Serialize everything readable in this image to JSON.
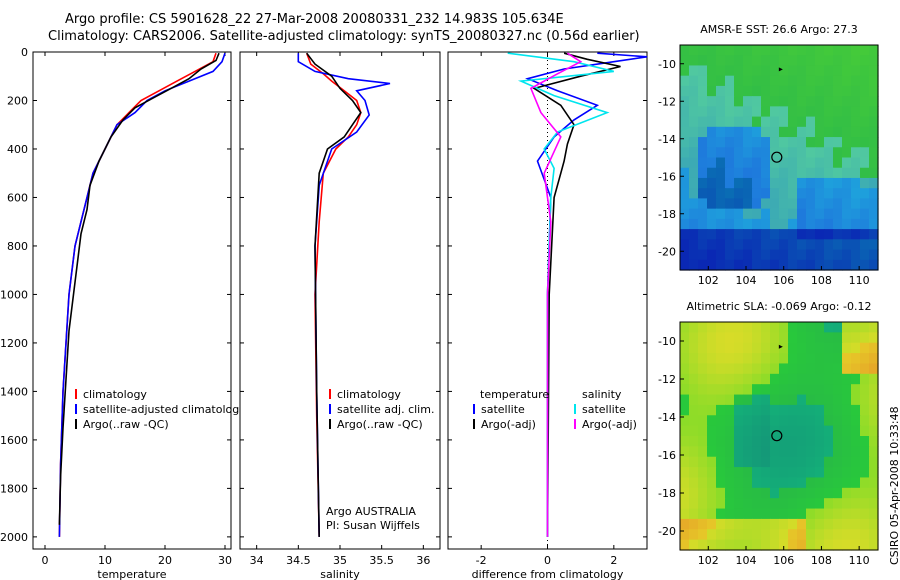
{
  "title": {
    "line1": "Argo profile: CS 5901628_22 27-Mar-2008 20080331_232 14.983S 105.634E",
    "line2": "Climatology: CARS2006. Satellite-adjusted climatology: synTS_20080327.nc (0.56d earlier)"
  },
  "side_label": "CSIRO 05-Apr-2008 10:33:48",
  "colors": {
    "climatology": "#ff0000",
    "satellite": "#0000ff",
    "argo": "#000000",
    "satellite_salinity": "#00e5ee",
    "argo_salinity": "#ff00ff"
  },
  "chart_data": [
    {
      "type": "line",
      "name": "temperature-profile",
      "xlabel": "temperature",
      "ylabel": "",
      "xlim": [
        -2,
        31
      ],
      "ylim": [
        0,
        2050
      ],
      "y_inverted": true,
      "xticks": [
        0,
        10,
        20,
        30
      ],
      "yticks": [
        0,
        200,
        400,
        600,
        800,
        1000,
        1200,
        1400,
        1600,
        1800,
        2000
      ],
      "legend": [
        "climatology",
        "satellite-adjusted climatology",
        "Argo(..raw -QC)"
      ],
      "legend_placement": "lower-right",
      "series": [
        {
          "name": "climatology",
          "color": "climatology",
          "x": [
            28.5,
            28,
            25,
            22,
            19,
            16,
            14,
            12,
            10,
            8,
            7,
            6,
            5,
            4,
            3.5,
            3,
            2.6,
            2.4
          ],
          "y": [
            5,
            40,
            80,
            120,
            160,
            200,
            250,
            300,
            400,
            500,
            600,
            700,
            800,
            1000,
            1200,
            1400,
            1700,
            2000
          ]
        },
        {
          "name": "satellite-adjusted climatology",
          "color": "satellite",
          "x": [
            30,
            29.5,
            28,
            24,
            20,
            17,
            15,
            12,
            10,
            8,
            7,
            6,
            5,
            4,
            3.5,
            3,
            2.6,
            2.4
          ],
          "y": [
            5,
            40,
            80,
            120,
            160,
            200,
            250,
            300,
            400,
            500,
            600,
            700,
            800,
            1000,
            1200,
            1400,
            1700,
            2000
          ]
        },
        {
          "name": "Argo(..raw -QC)",
          "color": "argo",
          "x": [
            29,
            28.5,
            26,
            24,
            21,
            18,
            15,
            13,
            11,
            9,
            7.5,
            7,
            6,
            5,
            4,
            3.5,
            3,
            2.6,
            2.4
          ],
          "y": [
            5,
            35,
            70,
            110,
            150,
            190,
            230,
            280,
            350,
            450,
            550,
            650,
            750,
            950,
            1150,
            1350,
            1550,
            1750,
            1950
          ]
        }
      ]
    },
    {
      "type": "line",
      "name": "salinity-profile",
      "xlabel": "salinity",
      "ylabel": "",
      "xlim": [
        33.8,
        36.2
      ],
      "ylim": [
        0,
        2050
      ],
      "y_inverted": true,
      "xticks": [
        34,
        34.5,
        35,
        35.5,
        36
      ],
      "legend": [
        "climatology",
        "satellite adj. clim.",
        "Argo(..raw -QC)"
      ],
      "legend_placement": "lower-right",
      "annotations": [
        "Argo AUSTRALIA",
        "PI: Susan Wijffels"
      ],
      "series": [
        {
          "name": "climatology",
          "color": "climatology",
          "x": [
            34.6,
            34.65,
            34.8,
            34.9,
            35.05,
            35.2,
            35.25,
            35.2,
            35.1,
            34.95,
            34.8,
            34.75,
            34.7,
            34.72,
            34.75
          ],
          "y": [
            5,
            50,
            90,
            120,
            160,
            200,
            250,
            300,
            350,
            400,
            500,
            700,
            1000,
            1500,
            2000
          ]
        },
        {
          "name": "satellite adj. clim.",
          "color": "satellite",
          "x": [
            34.5,
            34.5,
            34.7,
            35.1,
            35.6,
            35.2,
            35.3,
            35.35,
            35.2,
            34.9,
            34.75,
            34.7,
            34.72,
            34.75
          ],
          "y": [
            5,
            40,
            80,
            110,
            130,
            160,
            200,
            260,
            330,
            400,
            550,
            800,
            1400,
            2000
          ]
        },
        {
          "name": "Argo(..raw -QC)",
          "color": "argo",
          "x": [
            34.6,
            34.7,
            34.9,
            35.0,
            35.15,
            35.25,
            35.15,
            35.05,
            34.85,
            34.75,
            34.7,
            34.72,
            34.75
          ],
          "y": [
            5,
            50,
            100,
            150,
            200,
            250,
            300,
            350,
            400,
            500,
            800,
            1400,
            2000
          ]
        }
      ]
    },
    {
      "type": "line",
      "name": "difference-profile",
      "xlabel": "difference from climatology",
      "ylabel": "",
      "xlim": [
        -3,
        3
      ],
      "ylim": [
        0,
        2050
      ],
      "y_inverted": true,
      "xticks": [
        -2,
        0,
        2
      ],
      "legend": [
        "temperature",
        "satellite",
        "Argo(-adj)",
        "salinity",
        "satellite",
        "Argo(-adj)"
      ],
      "legend_placement": "lower-center",
      "series": [
        {
          "name": "temperature satellite",
          "color": "satellite",
          "x": [
            1.5,
            3,
            2,
            0.5,
            -0.6,
            0.3,
            1.5,
            0.8,
            0.2,
            -0.3,
            0.1,
            0,
            0
          ],
          "y": [
            5,
            20,
            40,
            70,
            110,
            160,
            220,
            280,
            350,
            450,
            600,
            1000,
            2000
          ]
        },
        {
          "name": "temperature Argo(-adj)",
          "color": "argo",
          "x": [
            0.5,
            1.2,
            2.2,
            1.0,
            -0.4,
            0.4,
            0.8,
            0.6,
            0.5,
            0.4,
            0.2,
            0.05,
            0
          ],
          "y": [
            5,
            30,
            60,
            100,
            150,
            220,
            300,
            380,
            450,
            500,
            600,
            1000,
            2000
          ]
        },
        {
          "name": "salinity satellite",
          "color": "satellite_salinity",
          "x": [
            -1.2,
            0.8,
            2.0,
            -0.8,
            0.2,
            1.8,
            0.3,
            -0.1,
            0.2,
            0.1,
            0,
            0
          ],
          "y": [
            5,
            40,
            80,
            120,
            180,
            250,
            330,
            400,
            480,
            600,
            1000,
            2000
          ]
        },
        {
          "name": "salinity Argo(-adj)",
          "color": "argo_salinity",
          "x": [
            0.6,
            1.0,
            0.3,
            -0.5,
            -0.2,
            0.4,
            -0.1,
            0.1,
            0.0,
            0
          ],
          "y": [
            5,
            40,
            90,
            150,
            250,
            350,
            500,
            700,
            1000,
            2000
          ]
        }
      ]
    },
    {
      "type": "heatmap",
      "name": "sst-map",
      "title": "AMSR-E SST: 26.6 Argo: 27.3",
      "xlim": [
        100.5,
        111
      ],
      "ylim": [
        -21,
        -9
      ],
      "xticks": [
        102,
        104,
        106,
        108,
        110
      ],
      "yticks": [
        -10,
        -12,
        -14,
        -16,
        -18,
        -20
      ],
      "markers": [
        {
          "kind": "circle",
          "lon": 105.634,
          "lat": -14.983
        },
        {
          "kind": "arrow",
          "lon": 105.9,
          "lat": -10.3
        }
      ]
    },
    {
      "type": "heatmap",
      "name": "sla-map",
      "title": "Altimetric SLA: -0.069 Argo: -0.12",
      "xlim": [
        100.5,
        111
      ],
      "ylim": [
        -21,
        -9
      ],
      "xticks": [
        102,
        104,
        106,
        108,
        110
      ],
      "yticks": [
        -10,
        -12,
        -14,
        -16,
        -18,
        -20
      ],
      "markers": [
        {
          "kind": "circle",
          "lon": 105.634,
          "lat": -14.983
        },
        {
          "kind": "arrow",
          "lon": 105.9,
          "lat": -10.3
        }
      ]
    }
  ]
}
